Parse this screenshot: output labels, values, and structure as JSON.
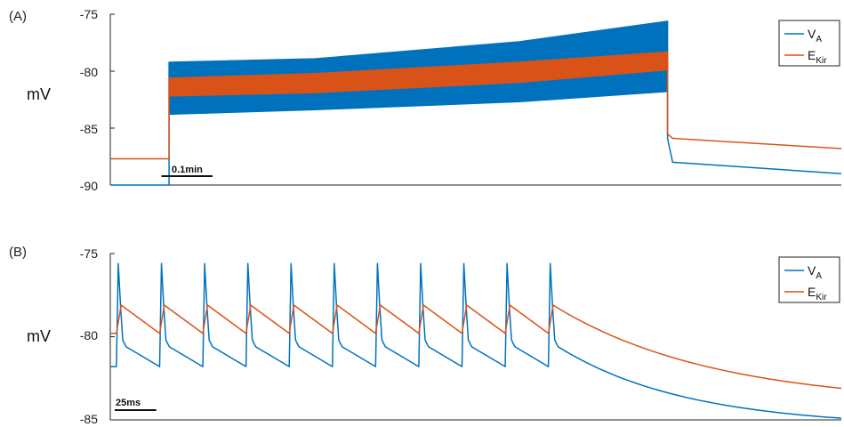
{
  "chart_data": [
    {
      "type": "line",
      "panel_label": "(A)",
      "ylabel": "mV",
      "ylim": [
        -90,
        -75
      ],
      "yticks": [
        "-75",
        "-80",
        "-85",
        "-90"
      ],
      "xlim": [
        0,
        1.43
      ],
      "scale_bar": {
        "label": "0.1min",
        "length": 0.1
      },
      "legend": {
        "position": "top-right"
      },
      "series": [
        {
          "name": "V",
          "name_sub": "A",
          "color": "#0072BD",
          "baseline_x": [
            0,
            0.115
          ],
          "baseline_y": [
            -90,
            -90
          ],
          "band": {
            "x": [
              0.115,
              0.4,
              0.8,
              1.09
            ],
            "upper": [
              -79.2,
              -78.9,
              -77.4,
              -75.6
            ],
            "lower": [
              -83.8,
              -83.4,
              -82.7,
              -81.8
            ]
          },
          "tail_x": [
            1.09,
            1.1,
            1.43
          ],
          "tail_y": [
            -85.9,
            -88.0,
            -89.0
          ]
        },
        {
          "name": "E",
          "name_sub": "Kir",
          "color": "#D95319",
          "baseline_x": [
            0,
            0.115
          ],
          "baseline_y": [
            -87.7,
            -87.7
          ],
          "band": {
            "x": [
              0.115,
              0.4,
              0.8,
              1.09
            ],
            "upper": [
              -80.6,
              -80.2,
              -79.2,
              -78.3
            ],
            "lower": [
              -82.2,
              -81.9,
              -81.0,
              -79.9
            ]
          },
          "tail_x": [
            1.09,
            1.1,
            1.43
          ],
          "tail_y": [
            -85.5,
            -85.9,
            -86.8
          ]
        }
      ]
    },
    {
      "type": "line",
      "panel_label": "(B)",
      "ylabel": "mV",
      "ylim": [
        -85,
        -75
      ],
      "yticks": [
        "-75",
        "-80",
        "-85"
      ],
      "xlim": [
        0,
        440
      ],
      "scale_bar": {
        "label": "25ms",
        "length": 25
      },
      "legend": {
        "position": "top-right"
      },
      "spike_times": [
        4,
        30,
        56,
        82,
        108,
        134,
        160,
        186,
        212,
        238,
        264
      ],
      "series": [
        {
          "name": "V",
          "name_sub": "A",
          "color": "#0072BD",
          "peak": -75.6,
          "shoulder": -80.2,
          "trough": -81.8,
          "end_value": -84.9
        },
        {
          "name": "E",
          "name_sub": "Kir",
          "color": "#D95319",
          "peak": -78.1,
          "trough": -79.8,
          "end_value": -83.1
        }
      ]
    }
  ]
}
